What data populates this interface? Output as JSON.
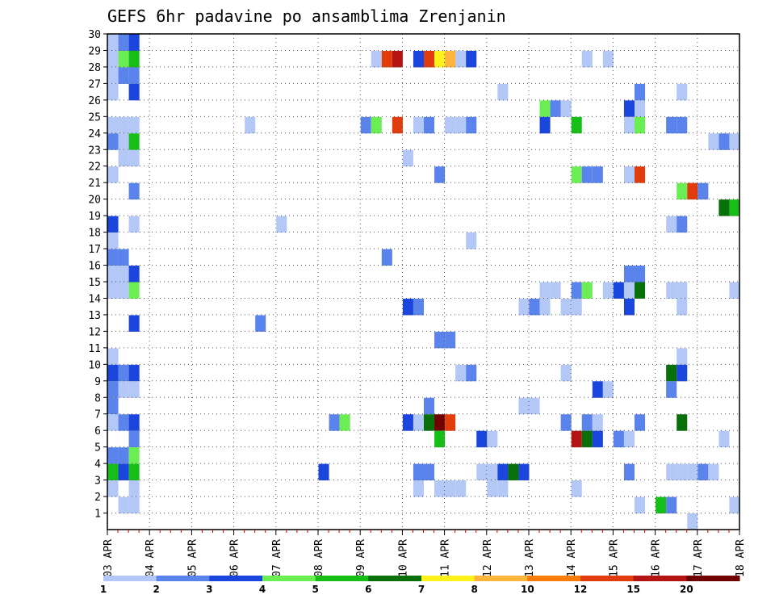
{
  "chart_data": {
    "type": "heatmap",
    "title": "GEFS 6hr padavine po ansamblima Zrenjanin",
    "x_unit": "6-hour step",
    "x_range": [
      0,
      60
    ],
    "xlabels": [
      "03 APR",
      "04 APR",
      "05 APR",
      "06 APR",
      "07 APR",
      "08 APR",
      "09 APR",
      "10 APR",
      "11 APR",
      "12 APR",
      "13 APR",
      "14 APR",
      "15 APR",
      "16 APR",
      "17 APR",
      "18 APR"
    ],
    "y_range": [
      0,
      30
    ],
    "ylabels": [
      1,
      2,
      3,
      4,
      5,
      6,
      7,
      8,
      9,
      10,
      11,
      12,
      13,
      14,
      15,
      16,
      17,
      18,
      19,
      20,
      21,
      22,
      23,
      24,
      25,
      26,
      27,
      28,
      29,
      30
    ],
    "legend": {
      "labels": [
        "1",
        "2",
        "3",
        "4",
        "5",
        "6",
        "7",
        "8",
        "10",
        "12",
        "15",
        "20"
      ],
      "colors": [
        "#b4c8f8",
        "#5a84ec",
        "#1a46de",
        "#6aee54",
        "#18be18",
        "#087008",
        "#fff21c",
        "#ffb43c",
        "#fa7d0a",
        "#e03c0c",
        "#b41414",
        "#6e0000"
      ]
    },
    "levels": [
      "1",
      "2",
      "3",
      "4",
      "5",
      "6",
      "7",
      "8",
      "10",
      "12",
      "15",
      "20"
    ],
    "cells": [
      [
        1,
        30,
        0
      ],
      [
        2,
        30,
        1
      ],
      [
        3,
        30,
        2
      ],
      [
        1,
        29,
        0
      ],
      [
        2,
        29,
        3
      ],
      [
        3,
        29,
        4
      ],
      [
        26,
        29,
        0
      ],
      [
        27,
        29,
        9
      ],
      [
        28,
        29,
        10
      ],
      [
        30,
        29,
        2
      ],
      [
        31,
        29,
        9
      ],
      [
        32,
        29,
        6
      ],
      [
        33,
        29,
        7
      ],
      [
        34,
        29,
        0
      ],
      [
        35,
        29,
        2
      ],
      [
        46,
        29,
        0
      ],
      [
        48,
        29,
        0
      ],
      [
        1,
        28,
        0
      ],
      [
        2,
        28,
        1
      ],
      [
        3,
        28,
        1
      ],
      [
        1,
        27,
        0
      ],
      [
        3,
        27,
        2
      ],
      [
        38,
        27,
        0
      ],
      [
        51,
        27,
        1
      ],
      [
        55,
        27,
        0
      ],
      [
        42,
        26,
        3
      ],
      [
        43,
        26,
        1
      ],
      [
        44,
        26,
        0
      ],
      [
        50,
        26,
        2
      ],
      [
        51,
        26,
        0
      ],
      [
        1,
        25,
        0
      ],
      [
        2,
        25,
        0
      ],
      [
        3,
        25,
        0
      ],
      [
        14,
        25,
        0
      ],
      [
        25,
        25,
        1
      ],
      [
        26,
        25,
        3
      ],
      [
        28,
        25,
        9
      ],
      [
        30,
        25,
        0
      ],
      [
        31,
        25,
        1
      ],
      [
        33,
        25,
        0
      ],
      [
        34,
        25,
        0
      ],
      [
        35,
        25,
        1
      ],
      [
        42,
        25,
        2
      ],
      [
        45,
        25,
        4
      ],
      [
        50,
        25,
        0
      ],
      [
        51,
        25,
        3
      ],
      [
        54,
        25,
        1
      ],
      [
        55,
        25,
        1
      ],
      [
        1,
        24,
        1
      ],
      [
        2,
        24,
        0
      ],
      [
        3,
        24,
        4
      ],
      [
        58,
        24,
        0
      ],
      [
        59,
        24,
        1
      ],
      [
        60,
        24,
        0
      ],
      [
        2,
        23,
        0
      ],
      [
        3,
        23,
        0
      ],
      [
        29,
        23,
        0
      ],
      [
        1,
        22,
        0
      ],
      [
        32,
        22,
        1
      ],
      [
        45,
        22,
        3
      ],
      [
        46,
        22,
        1
      ],
      [
        47,
        22,
        1
      ],
      [
        50,
        22,
        0
      ],
      [
        51,
        22,
        9
      ],
      [
        3,
        21,
        1
      ],
      [
        55,
        21,
        3
      ],
      [
        56,
        21,
        9
      ],
      [
        57,
        21,
        1
      ],
      [
        59,
        20,
        5
      ],
      [
        60,
        20,
        4
      ],
      [
        1,
        19,
        2
      ],
      [
        3,
        19,
        0
      ],
      [
        17,
        19,
        0
      ],
      [
        54,
        19,
        0
      ],
      [
        55,
        19,
        1
      ],
      [
        1,
        18,
        0
      ],
      [
        35,
        18,
        0
      ],
      [
        1,
        17,
        1
      ],
      [
        2,
        17,
        1
      ],
      [
        27,
        17,
        1
      ],
      [
        1,
        16,
        0
      ],
      [
        2,
        16,
        0
      ],
      [
        3,
        16,
        2
      ],
      [
        50,
        16,
        1
      ],
      [
        51,
        16,
        1
      ],
      [
        1,
        15,
        0
      ],
      [
        2,
        15,
        0
      ],
      [
        3,
        15,
        3
      ],
      [
        42,
        15,
        0
      ],
      [
        43,
        15,
        0
      ],
      [
        45,
        15,
        1
      ],
      [
        46,
        15,
        3
      ],
      [
        48,
        15,
        0
      ],
      [
        49,
        15,
        2
      ],
      [
        50,
        15,
        0
      ],
      [
        51,
        15,
        5
      ],
      [
        54,
        15,
        0
      ],
      [
        55,
        15,
        0
      ],
      [
        60,
        15,
        0
      ],
      [
        29,
        14,
        2
      ],
      [
        30,
        14,
        1
      ],
      [
        40,
        14,
        0
      ],
      [
        41,
        14,
        1
      ],
      [
        42,
        14,
        0
      ],
      [
        44,
        14,
        0
      ],
      [
        45,
        14,
        0
      ],
      [
        50,
        14,
        2
      ],
      [
        55,
        14,
        0
      ],
      [
        3,
        13,
        2
      ],
      [
        15,
        13,
        1
      ],
      [
        32,
        12,
        1
      ],
      [
        33,
        12,
        1
      ],
      [
        1,
        11,
        0
      ],
      [
        55,
        11,
        0
      ],
      [
        1,
        10,
        2
      ],
      [
        2,
        10,
        1
      ],
      [
        3,
        10,
        2
      ],
      [
        34,
        10,
        0
      ],
      [
        35,
        10,
        1
      ],
      [
        44,
        10,
        0
      ],
      [
        54,
        10,
        5
      ],
      [
        55,
        10,
        2
      ],
      [
        1,
        9,
        1
      ],
      [
        2,
        9,
        0
      ],
      [
        3,
        9,
        0
      ],
      [
        47,
        9,
        2
      ],
      [
        48,
        9,
        0
      ],
      [
        54,
        9,
        1
      ],
      [
        1,
        8,
        1
      ],
      [
        31,
        8,
        1
      ],
      [
        40,
        8,
        0
      ],
      [
        41,
        8,
        0
      ],
      [
        1,
        7,
        0
      ],
      [
        2,
        7,
        1
      ],
      [
        3,
        7,
        2
      ],
      [
        22,
        7,
        1
      ],
      [
        23,
        7,
        3
      ],
      [
        29,
        7,
        2
      ],
      [
        30,
        7,
        0
      ],
      [
        31,
        7,
        5
      ],
      [
        32,
        7,
        11
      ],
      [
        33,
        7,
        9
      ],
      [
        44,
        7,
        1
      ],
      [
        46,
        7,
        1
      ],
      [
        47,
        7,
        0
      ],
      [
        51,
        7,
        1
      ],
      [
        55,
        7,
        5
      ],
      [
        3,
        6,
        1
      ],
      [
        32,
        6,
        4
      ],
      [
        36,
        6,
        2
      ],
      [
        37,
        6,
        0
      ],
      [
        45,
        6,
        10
      ],
      [
        46,
        6,
        5
      ],
      [
        47,
        6,
        2
      ],
      [
        49,
        6,
        1
      ],
      [
        50,
        6,
        0
      ],
      [
        59,
        6,
        0
      ],
      [
        1,
        5,
        1
      ],
      [
        2,
        5,
        1
      ],
      [
        3,
        5,
        3
      ],
      [
        1,
        4,
        4
      ],
      [
        2,
        4,
        2
      ],
      [
        3,
        4,
        4
      ],
      [
        21,
        4,
        2
      ],
      [
        30,
        4,
        1
      ],
      [
        31,
        4,
        1
      ],
      [
        36,
        4,
        0
      ],
      [
        37,
        4,
        0
      ],
      [
        38,
        4,
        2
      ],
      [
        39,
        4,
        5
      ],
      [
        40,
        4,
        2
      ],
      [
        50,
        4,
        1
      ],
      [
        54,
        4,
        0
      ],
      [
        55,
        4,
        0
      ],
      [
        56,
        4,
        0
      ],
      [
        57,
        4,
        1
      ],
      [
        58,
        4,
        0
      ],
      [
        1,
        3,
        0
      ],
      [
        3,
        3,
        0
      ],
      [
        30,
        3,
        0
      ],
      [
        32,
        3,
        0
      ],
      [
        33,
        3,
        0
      ],
      [
        34,
        3,
        0
      ],
      [
        37,
        3,
        0
      ],
      [
        38,
        3,
        0
      ],
      [
        45,
        3,
        0
      ],
      [
        2,
        2,
        0
      ],
      [
        3,
        2,
        0
      ],
      [
        51,
        2,
        0
      ],
      [
        53,
        2,
        4
      ],
      [
        54,
        2,
        1
      ],
      [
        60,
        2,
        0
      ],
      [
        56,
        1,
        0
      ]
    ]
  }
}
